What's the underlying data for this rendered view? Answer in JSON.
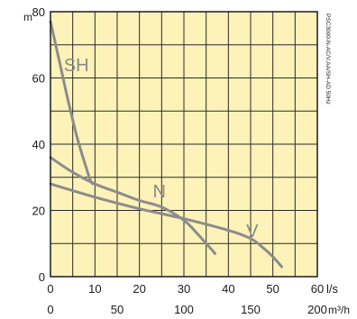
{
  "chart_data": {
    "type": "line",
    "title": "",
    "y_unit": "m",
    "x_unit": "l/s",
    "x2_unit": "m³/h",
    "side_note": "PSC3000-N-AC/V.AA/SH-AD 50Hz",
    "ylim": [
      0,
      80
    ],
    "xlim": [
      0,
      60
    ],
    "x2lim": [
      0,
      200
    ],
    "y_ticks": [
      0,
      20,
      40,
      60,
      80
    ],
    "x_ticks": [
      0,
      10,
      20,
      30,
      40,
      50,
      60
    ],
    "x2_ticks": [
      0,
      50,
      100,
      150,
      200
    ],
    "grid": true,
    "colors": {
      "background": "#fdf2b8",
      "grid": "#2b2b2b",
      "curve": "#8c8c8c"
    },
    "series": [
      {
        "name": "SH",
        "x": [
          0,
          2,
          4,
          6,
          8,
          9,
          9.5
        ],
        "y": [
          77,
          65,
          53,
          42,
          33,
          29,
          28
        ]
      },
      {
        "name": "N",
        "x": [
          0,
          5,
          10,
          15,
          20,
          25,
          30,
          33,
          35,
          37
        ],
        "y": [
          36,
          31.5,
          28,
          25.5,
          23,
          21,
          17,
          13,
          10,
          7
        ]
      },
      {
        "name": "V",
        "x": [
          0,
          10,
          20,
          30,
          40,
          45,
          48,
          50,
          52
        ],
        "y": [
          28,
          24,
          20.5,
          17.5,
          14,
          11.5,
          8.5,
          6,
          3
        ]
      }
    ],
    "label_positions": {
      "SH": {
        "x": 3,
        "y": 62
      },
      "N": {
        "x": 23,
        "y": 24
      },
      "V": {
        "x": 44,
        "y": 12
      }
    }
  }
}
